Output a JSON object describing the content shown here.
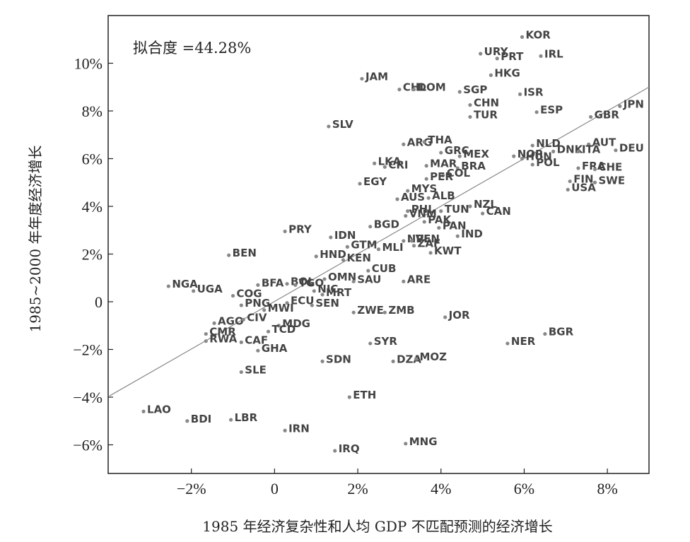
{
  "chart_data": {
    "type": "scatter",
    "xlabel": "1985 年经济复杂性和人均 GDP 不匹配预测的经济增长",
    "ylabel": "1985~2000 年年度经济增长",
    "annotation": "拟合度 =44.28%",
    "xlim": [
      -4.0,
      9.0
    ],
    "ylim": [
      -7.2,
      12.0
    ],
    "x_ticks": [
      -2,
      0,
      2,
      4,
      6,
      8
    ],
    "x_tick_labels": [
      "−2%",
      "0",
      "2%",
      "4%",
      "6%",
      "8%"
    ],
    "y_ticks": [
      -6,
      -4,
      -2,
      0,
      2,
      4,
      6,
      8,
      10
    ],
    "y_tick_labels": [
      "−6%",
      "−4%",
      "−2%",
      "0",
      "2%",
      "4%",
      "6%",
      "8%",
      "10%"
    ],
    "grid": false,
    "fit_line": {
      "x": [
        -3.97,
        9.0
      ],
      "y": [
        -3.95,
        9.0
      ]
    },
    "points": [
      {
        "label": "KOR",
        "x": 5.95,
        "y": 11.1
      },
      {
        "label": "URY",
        "x": 4.95,
        "y": 10.4
      },
      {
        "label": "PRT",
        "x": 5.35,
        "y": 10.2
      },
      {
        "label": "IRL",
        "x": 6.4,
        "y": 10.3
      },
      {
        "label": "HKG",
        "x": 5.2,
        "y": 9.5
      },
      {
        "label": "JAM",
        "x": 2.1,
        "y": 9.35
      },
      {
        "label": "CHL",
        "x": 3.0,
        "y": 8.9
      },
      {
        "label": "DOM",
        "x": 3.35,
        "y": 8.9
      },
      {
        "label": "SGP",
        "x": 4.45,
        "y": 8.8
      },
      {
        "label": "ISR",
        "x": 5.9,
        "y": 8.7
      },
      {
        "label": "CHN",
        "x": 4.7,
        "y": 8.25
      },
      {
        "label": "ESP",
        "x": 6.3,
        "y": 7.95
      },
      {
        "label": "TUR",
        "x": 4.7,
        "y": 7.75
      },
      {
        "label": "JPN",
        "x": 8.3,
        "y": 8.2
      },
      {
        "label": "GBR",
        "x": 7.6,
        "y": 7.75
      },
      {
        "label": "SLV",
        "x": 1.3,
        "y": 7.35
      },
      {
        "label": "ARG",
        "x": 3.1,
        "y": 6.6
      },
      {
        "label": "THA",
        "x": 3.6,
        "y": 6.7
      },
      {
        "label": "GRC",
        "x": 4.0,
        "y": 6.25
      },
      {
        "label": "AUT",
        "x": 7.55,
        "y": 6.6
      },
      {
        "label": "NOR",
        "x": 5.75,
        "y": 6.1
      },
      {
        "label": "NLD",
        "x": 6.2,
        "y": 6.55
      },
      {
        "label": "DNK",
        "x": 6.7,
        "y": 6.3
      },
      {
        "label": "ITA",
        "x": 7.3,
        "y": 6.3
      },
      {
        "label": "DEU",
        "x": 8.2,
        "y": 6.35
      },
      {
        "label": "MEX",
        "x": 4.45,
        "y": 6.1
      },
      {
        "label": "HUN",
        "x": 5.95,
        "y": 6.0
      },
      {
        "label": "LKA",
        "x": 2.4,
        "y": 5.8
      },
      {
        "label": "CRI",
        "x": 2.65,
        "y": 5.65
      },
      {
        "label": "MAR",
        "x": 3.65,
        "y": 5.7
      },
      {
        "label": "BRA",
        "x": 4.4,
        "y": 5.6
      },
      {
        "label": "POL",
        "x": 6.2,
        "y": 5.75
      },
      {
        "label": "FRA",
        "x": 7.3,
        "y": 5.6
      },
      {
        "label": "CHE",
        "x": 7.7,
        "y": 5.55
      },
      {
        "label": "COL",
        "x": 4.05,
        "y": 5.3
      },
      {
        "label": "PER",
        "x": 3.65,
        "y": 5.15
      },
      {
        "label": "EGY",
        "x": 2.05,
        "y": 4.95
      },
      {
        "label": "FIN",
        "x": 7.1,
        "y": 5.05
      },
      {
        "label": "SWE",
        "x": 7.7,
        "y": 5.0
      },
      {
        "label": "MYS",
        "x": 3.2,
        "y": 4.65
      },
      {
        "label": "USA",
        "x": 7.05,
        "y": 4.7
      },
      {
        "label": "AUS",
        "x": 2.95,
        "y": 4.3
      },
      {
        "label": "ALB",
        "x": 3.7,
        "y": 4.35
      },
      {
        "label": "NZL",
        "x": 4.7,
        "y": 4.0
      },
      {
        "label": "VNM",
        "x": 3.15,
        "y": 3.6
      },
      {
        "label": "PHL",
        "x": 3.2,
        "y": 3.8
      },
      {
        "label": "TUN",
        "x": 4.0,
        "y": 3.8
      },
      {
        "label": "CAN",
        "x": 5.0,
        "y": 3.7
      },
      {
        "label": "PRY",
        "x": 0.25,
        "y": 2.95
      },
      {
        "label": "IDN",
        "x": 1.35,
        "y": 2.7
      },
      {
        "label": "BGD",
        "x": 2.3,
        "y": 3.15
      },
      {
        "label": "PAK",
        "x": 3.6,
        "y": 3.35
      },
      {
        "label": "PAN",
        "x": 3.95,
        "y": 3.1
      },
      {
        "label": "GTM",
        "x": 1.75,
        "y": 2.3
      },
      {
        "label": "NPL",
        "x": 3.1,
        "y": 2.55
      },
      {
        "label": "VEN",
        "x": 3.3,
        "y": 2.55
      },
      {
        "label": "IND",
        "x": 4.4,
        "y": 2.75
      },
      {
        "label": "MLI",
        "x": 2.5,
        "y": 2.2
      },
      {
        "label": "ZAF",
        "x": 3.35,
        "y": 2.35
      },
      {
        "label": "BEN",
        "x": -1.1,
        "y": 1.95
      },
      {
        "label": "HND",
        "x": 1.0,
        "y": 1.9
      },
      {
        "label": "KEN",
        "x": 1.65,
        "y": 1.75
      },
      {
        "label": "KWT",
        "x": 3.75,
        "y": 2.05
      },
      {
        "label": "NGA",
        "x": -2.55,
        "y": 0.65
      },
      {
        "label": "UGA",
        "x": -1.95,
        "y": 0.45
      },
      {
        "label": "BFA",
        "x": -0.4,
        "y": 0.7
      },
      {
        "label": "BOL",
        "x": 0.3,
        "y": 0.75
      },
      {
        "label": "TGO",
        "x": 0.5,
        "y": 0.7
      },
      {
        "label": "OMN",
        "x": 1.2,
        "y": 0.95
      },
      {
        "label": "CUB",
        "x": 2.25,
        "y": 1.3
      },
      {
        "label": "SAU",
        "x": 1.9,
        "y": 0.85
      },
      {
        "label": "ARE",
        "x": 3.1,
        "y": 0.85
      },
      {
        "label": "NIC",
        "x": 0.95,
        "y": 0.45
      },
      {
        "label": "MRT",
        "x": 1.15,
        "y": 0.3
      },
      {
        "label": "COG",
        "x": -1.0,
        "y": 0.25
      },
      {
        "label": "PNG",
        "x": -0.8,
        "y": -0.15
      },
      {
        "label": "ECU",
        "x": 0.3,
        "y": -0.05
      },
      {
        "label": "SEN",
        "x": 0.9,
        "y": -0.15
      },
      {
        "label": "MWI",
        "x": -0.25,
        "y": -0.35
      },
      {
        "label": "ZWE",
        "x": 1.9,
        "y": -0.45
      },
      {
        "label": "ZMB",
        "x": 2.65,
        "y": -0.45
      },
      {
        "label": "JOR",
        "x": 4.1,
        "y": -0.65
      },
      {
        "label": "AGO",
        "x": -1.45,
        "y": -0.9
      },
      {
        "label": "CIV",
        "x": -0.75,
        "y": -0.75
      },
      {
        "label": "MDG",
        "x": 0.1,
        "y": -1.0
      },
      {
        "label": "CMR",
        "x": -1.65,
        "y": -1.35
      },
      {
        "label": "TCD",
        "x": -0.15,
        "y": -1.25
      },
      {
        "label": "BGR",
        "x": 6.5,
        "y": -1.35
      },
      {
        "label": "RWA",
        "x": -1.65,
        "y": -1.65
      },
      {
        "label": "CAF",
        "x": -0.8,
        "y": -1.7
      },
      {
        "label": "SYR",
        "x": 2.3,
        "y": -1.75
      },
      {
        "label": "NER",
        "x": 5.6,
        "y": -1.75
      },
      {
        "label": "GHA",
        "x": -0.4,
        "y": -2.05
      },
      {
        "label": "SDN",
        "x": 1.15,
        "y": -2.5
      },
      {
        "label": "DZA",
        "x": 2.85,
        "y": -2.5
      },
      {
        "label": "MOZ",
        "x": 3.4,
        "y": -2.4
      },
      {
        "label": "SLE",
        "x": -0.8,
        "y": -2.95
      },
      {
        "label": "ETH",
        "x": 1.8,
        "y": -4.0
      },
      {
        "label": "LAO",
        "x": -3.15,
        "y": -4.6
      },
      {
        "label": "BDI",
        "x": -2.1,
        "y": -5.0
      },
      {
        "label": "LBR",
        "x": -1.05,
        "y": -4.95
      },
      {
        "label": "IRN",
        "x": 0.25,
        "y": -5.4
      },
      {
        "label": "MNG",
        "x": 3.15,
        "y": -5.95
      },
      {
        "label": "IRQ",
        "x": 1.45,
        "y": -6.25
      }
    ]
  }
}
